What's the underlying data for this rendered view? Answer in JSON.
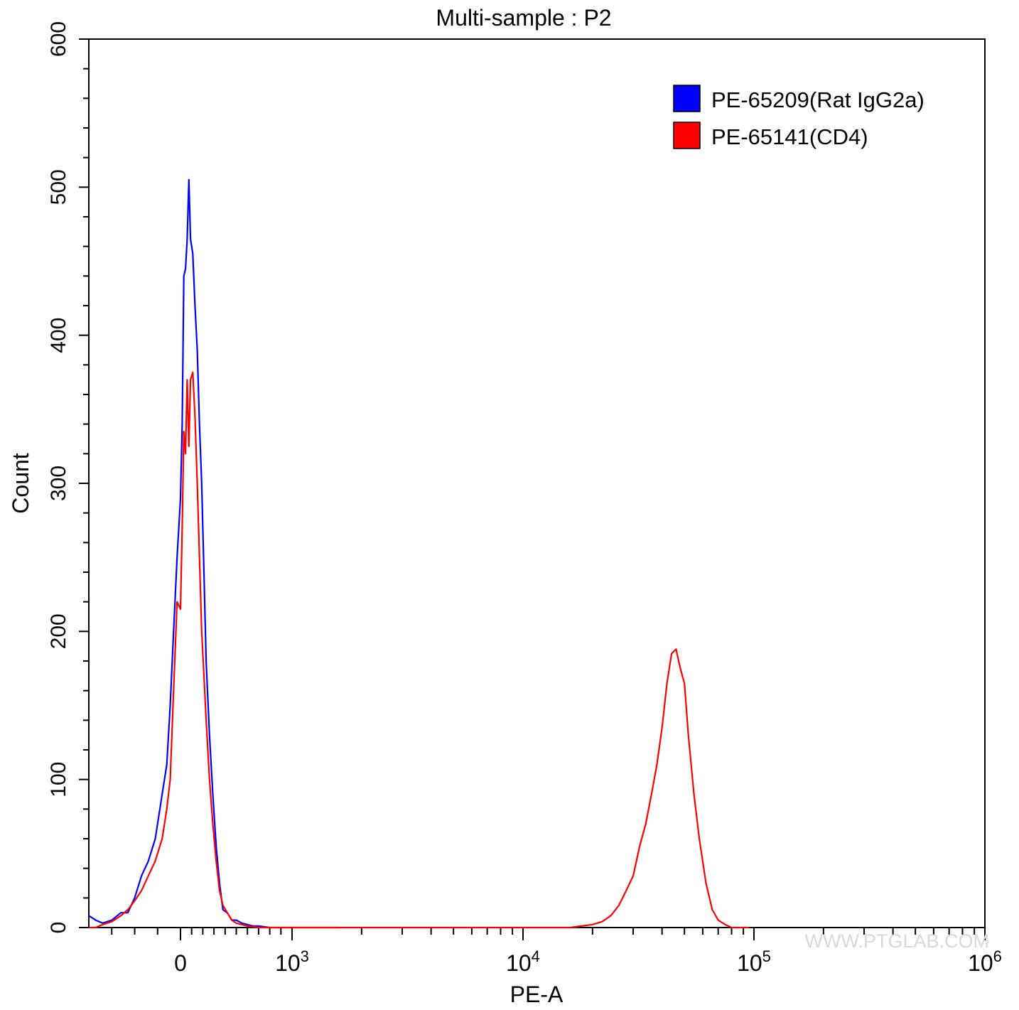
{
  "chart_data": {
    "type": "line",
    "title": "Multi-sample : P2",
    "xlabel": "PE-A",
    "ylabel": "Count",
    "x_scale": "biexponential",
    "xlim": [
      -400,
      1000000
    ],
    "ylim": [
      0,
      600
    ],
    "y_ticks": [
      0,
      100,
      200,
      300,
      400,
      500,
      600
    ],
    "x_ticks": [
      {
        "value": 0,
        "base": "0",
        "exp": ""
      },
      {
        "value": 1000,
        "base": "10",
        "exp": "3"
      },
      {
        "value": 10000,
        "base": "10",
        "exp": "4"
      },
      {
        "value": 100000,
        "base": "10",
        "exp": "5"
      },
      {
        "value": 1000000,
        "base": "10",
        "exp": "6"
      }
    ],
    "grid": false,
    "legend_position": "top-right",
    "series": [
      {
        "name": "PE-65209(Rat IgG2a)",
        "color": "#0000ff",
        "x": [
          -400,
          -370,
          -340,
          -300,
          -260,
          -230,
          -200,
          -170,
          -140,
          -110,
          -80,
          -60,
          -45,
          -30,
          -15,
          0,
          15,
          30,
          45,
          60,
          75,
          90,
          110,
          130,
          150,
          170,
          190,
          210,
          230,
          260,
          290,
          320,
          350,
          380,
          420,
          460,
          500,
          550,
          600,
          650,
          700,
          800,
          900,
          1000,
          1200,
          1600
        ],
        "y": [
          8,
          5,
          3,
          5,
          10,
          10,
          20,
          35,
          45,
          60,
          90,
          110,
          150,
          200,
          250,
          290,
          340,
          440,
          445,
          465,
          505,
          465,
          455,
          420,
          390,
          340,
          300,
          240,
          180,
          130,
          90,
          55,
          30,
          12,
          10,
          5,
          5,
          3,
          2,
          1,
          1,
          0,
          0,
          0,
          0,
          0
        ]
      },
      {
        "name": "PE-65141(CD4)",
        "color": "#ff0000",
        "x": [
          -400,
          -370,
          -340,
          -300,
          -260,
          -230,
          -200,
          -170,
          -140,
          -110,
          -80,
          -60,
          -45,
          -30,
          -15,
          0,
          15,
          30,
          45,
          60,
          75,
          90,
          110,
          130,
          150,
          170,
          190,
          210,
          230,
          260,
          290,
          320,
          350,
          380,
          420,
          460,
          500,
          550,
          600,
          700,
          800,
          1000,
          2000,
          3000,
          5000,
          8000,
          12000,
          16000,
          20000,
          22000,
          24000,
          26000,
          28000,
          30000,
          32000,
          34000,
          36000,
          38000,
          40000,
          42000,
          44000,
          46000,
          48000,
          50000,
          52000,
          55000,
          58000,
          62000,
          66000,
          70000,
          75000,
          80000,
          85000,
          90000,
          95000
        ],
        "y": [
          0,
          0,
          2,
          4,
          8,
          12,
          18,
          25,
          35,
          45,
          60,
          80,
          100,
          160,
          220,
          215,
          270,
          335,
          320,
          370,
          325,
          370,
          375,
          345,
          300,
          250,
          200,
          170,
          140,
          100,
          70,
          45,
          25,
          15,
          10,
          5,
          3,
          2,
          1,
          0,
          0,
          0,
          0,
          0,
          0,
          0,
          0,
          0,
          2,
          4,
          8,
          15,
          25,
          35,
          55,
          70,
          90,
          110,
          135,
          165,
          185,
          188,
          175,
          165,
          130,
          90,
          60,
          30,
          12,
          5,
          2,
          0,
          0,
          0,
          0
        ]
      }
    ],
    "watermark": "WWW.PTGLAB.COM"
  }
}
